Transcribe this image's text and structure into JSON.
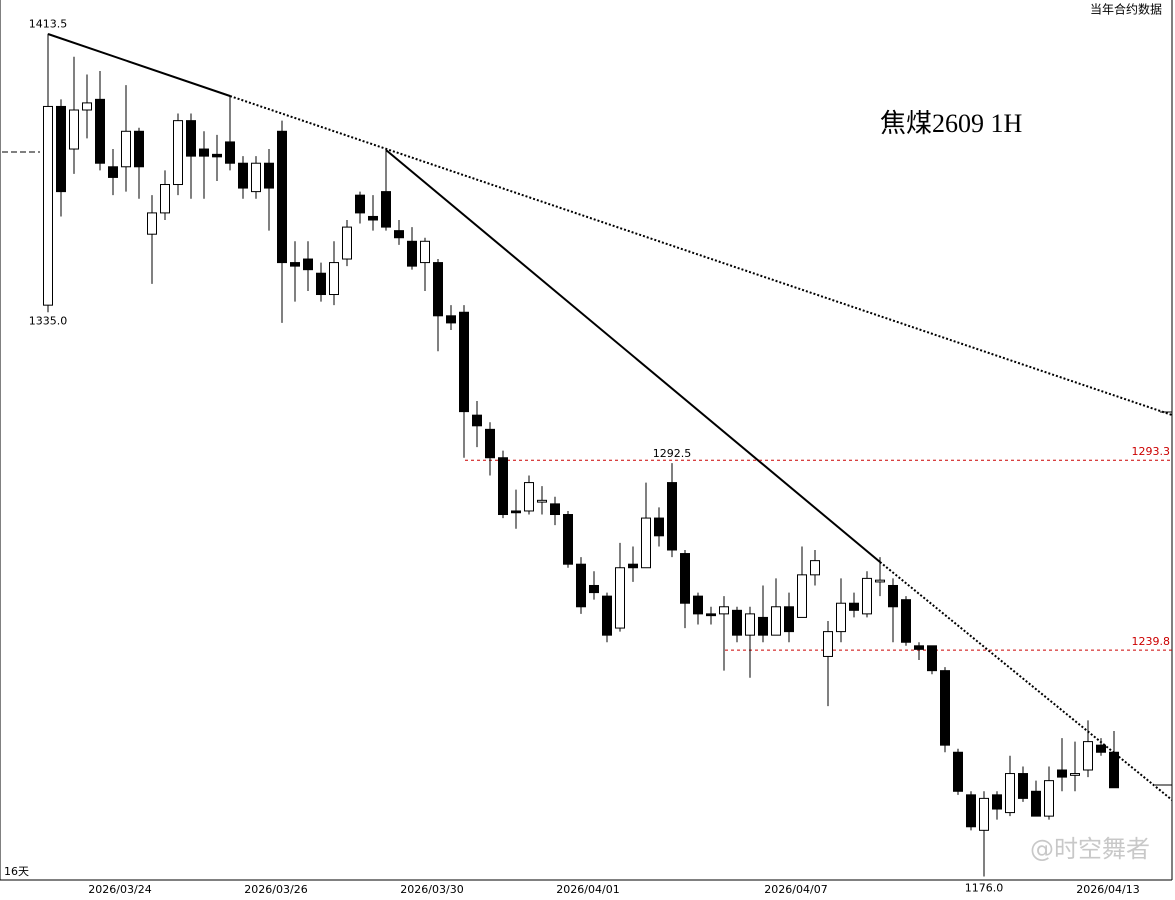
{
  "header": {
    "top_right": "当年合约数据",
    "bottom_left": "16天",
    "watermark": "@时空舞者"
  },
  "chart_data": {
    "type": "candlestick",
    "title": "焦煤2609  1H",
    "categories": [
      null,
      null,
      null,
      null,
      null,
      null,
      "2026/03/24",
      null,
      null,
      null,
      null,
      null,
      null,
      null,
      null,
      null,
      null,
      null,
      "2026/03/26",
      null,
      null,
      null,
      null,
      null,
      null,
      null,
      null,
      null,
      null,
      null,
      "2026/03/30",
      null,
      null,
      null,
      null,
      null,
      null,
      null,
      null,
      null,
      null,
      null,
      "2026/04/01",
      null,
      null,
      null,
      null,
      null,
      null,
      null,
      null,
      null,
      null,
      null,
      null,
      null,
      null,
      null,
      "2026/04/07",
      null,
      null,
      null,
      null,
      null,
      null,
      null,
      null,
      null,
      null,
      null,
      null,
      null,
      null,
      null,
      null,
      null,
      null,
      null,
      null,
      null,
      null,
      null,
      "2026/04/13"
    ],
    "open": [
      1337,
      1393,
      1381,
      1392,
      1395,
      1376,
      1376,
      1386,
      1357,
      1363,
      1371,
      1389,
      1381,
      1379.5,
      1383,
      1377,
      1369,
      1377,
      1386,
      1349,
      1350,
      1346,
      1340,
      1350,
      1368,
      1362,
      1369,
      1358,
      1355,
      1349,
      1349,
      1334,
      1335,
      1306,
      1302,
      1294,
      1279,
      1279,
      1281.5,
      1281,
      1278,
      1264,
      1258,
      1255,
      1246,
      1264,
      1263,
      1277,
      1287,
      1267,
      1255,
      1250,
      1250,
      1251,
      1244,
      1249,
      1244,
      1252,
      1249,
      1261,
      1238,
      1245,
      1253,
      1250,
      1259,
      1258,
      1254,
      1241,
      1241,
      1234,
      1211,
      1199,
      1189,
      1199,
      1194,
      1205,
      1200,
      1193,
      1206,
      1204.5,
      1206,
      1213,
      1211
    ],
    "high": [
      1413.5,
      1395,
      1407,
      1402,
      1403,
      1381,
      1399,
      1387,
      1368,
      1375,
      1391,
      1391,
      1386,
      1385,
      1396,
      1379,
      1379,
      1381,
      1389,
      1355,
      1355,
      1349,
      1355,
      1361,
      1369,
      1368,
      1381,
      1361,
      1359,
      1356,
      1350,
      1337,
      1337,
      1310,
      1304,
      1296,
      1285,
      1289,
      1286,
      1283,
      1279,
      1266,
      1262,
      1256,
      1270,
      1269,
      1287,
      1280,
      1292.5,
      1268,
      1256,
      1252,
      1255,
      1252,
      1252,
      1258,
      1260,
      1256,
      1269,
      1268,
      1248,
      1260,
      1256,
      1262,
      1266,
      1260,
      1255,
      1242,
      1241,
      1235,
      1212,
      1200,
      1200,
      1200,
      1210,
      1207,
      1203,
      1207,
      1215,
      1214,
      1220,
      1215,
      1217
    ],
    "low": [
      1335,
      1362,
      1374,
      1384,
      1375,
      1368,
      1369,
      1367,
      1343,
      1361,
      1368,
      1367,
      1367,
      1372,
      1375,
      1367,
      1367,
      1358,
      1332,
      1338,
      1341,
      1338,
      1337,
      1348,
      1360,
      1358,
      1358,
      1354,
      1347,
      1341,
      1324,
      1330,
      1294,
      1297,
      1289,
      1277,
      1274,
      1278,
      1278,
      1275,
      1263,
      1250,
      1254,
      1242,
      1245,
      1259,
      1263,
      1269,
      1266,
      1246,
      1247,
      1247,
      1234,
      1242,
      1232,
      1242,
      1244,
      1242,
      1249,
      1258,
      1224,
      1242,
      1249,
      1249,
      1255,
      1242,
      1241,
      1237,
      1233,
      1211,
      1199,
      1189,
      1176,
      1192,
      1193,
      1197,
      1193,
      1192,
      1200,
      1200,
      1204,
      1210,
      1201
    ],
    "close": [
      1393,
      1369,
      1392,
      1394,
      1377,
      1373,
      1386,
      1376,
      1363,
      1371,
      1389,
      1379,
      1379,
      1378.8,
      1377,
      1370,
      1377,
      1370,
      1349,
      1348,
      1347,
      1340,
      1349,
      1359,
      1363,
      1361,
      1359,
      1356,
      1348,
      1355,
      1334,
      1332,
      1307,
      1303,
      1294,
      1278,
      1278.5,
      1287,
      1282,
      1278,
      1264,
      1252,
      1256,
      1244,
      1263,
      1263,
      1277,
      1272,
      1268,
      1253,
      1250,
      1249.5,
      1252,
      1244,
      1250,
      1244,
      1252,
      1245,
      1261,
      1265,
      1245,
      1253,
      1251,
      1260,
      1259.5,
      1252,
      1242,
      1240,
      1234,
      1213,
      1200,
      1190,
      1198,
      1195,
      1205,
      1198,
      1193,
      1203,
      1204,
      1205,
      1214,
      1211,
      1201
    ],
    "up_color": "#ffffff",
    "down_color": "#000000",
    "level_color": "#cc0000",
    "ylim": [
      1175,
      1423
    ],
    "levels": [
      1293.3,
      1239.8
    ],
    "extremes": {
      "values": [
        1413.5,
        1335,
        1292.5,
        1176
      ],
      "value_labels": [
        "1413.5",
        "1335.0",
        "1292.5",
        "1176.0"
      ]
    }
  }
}
